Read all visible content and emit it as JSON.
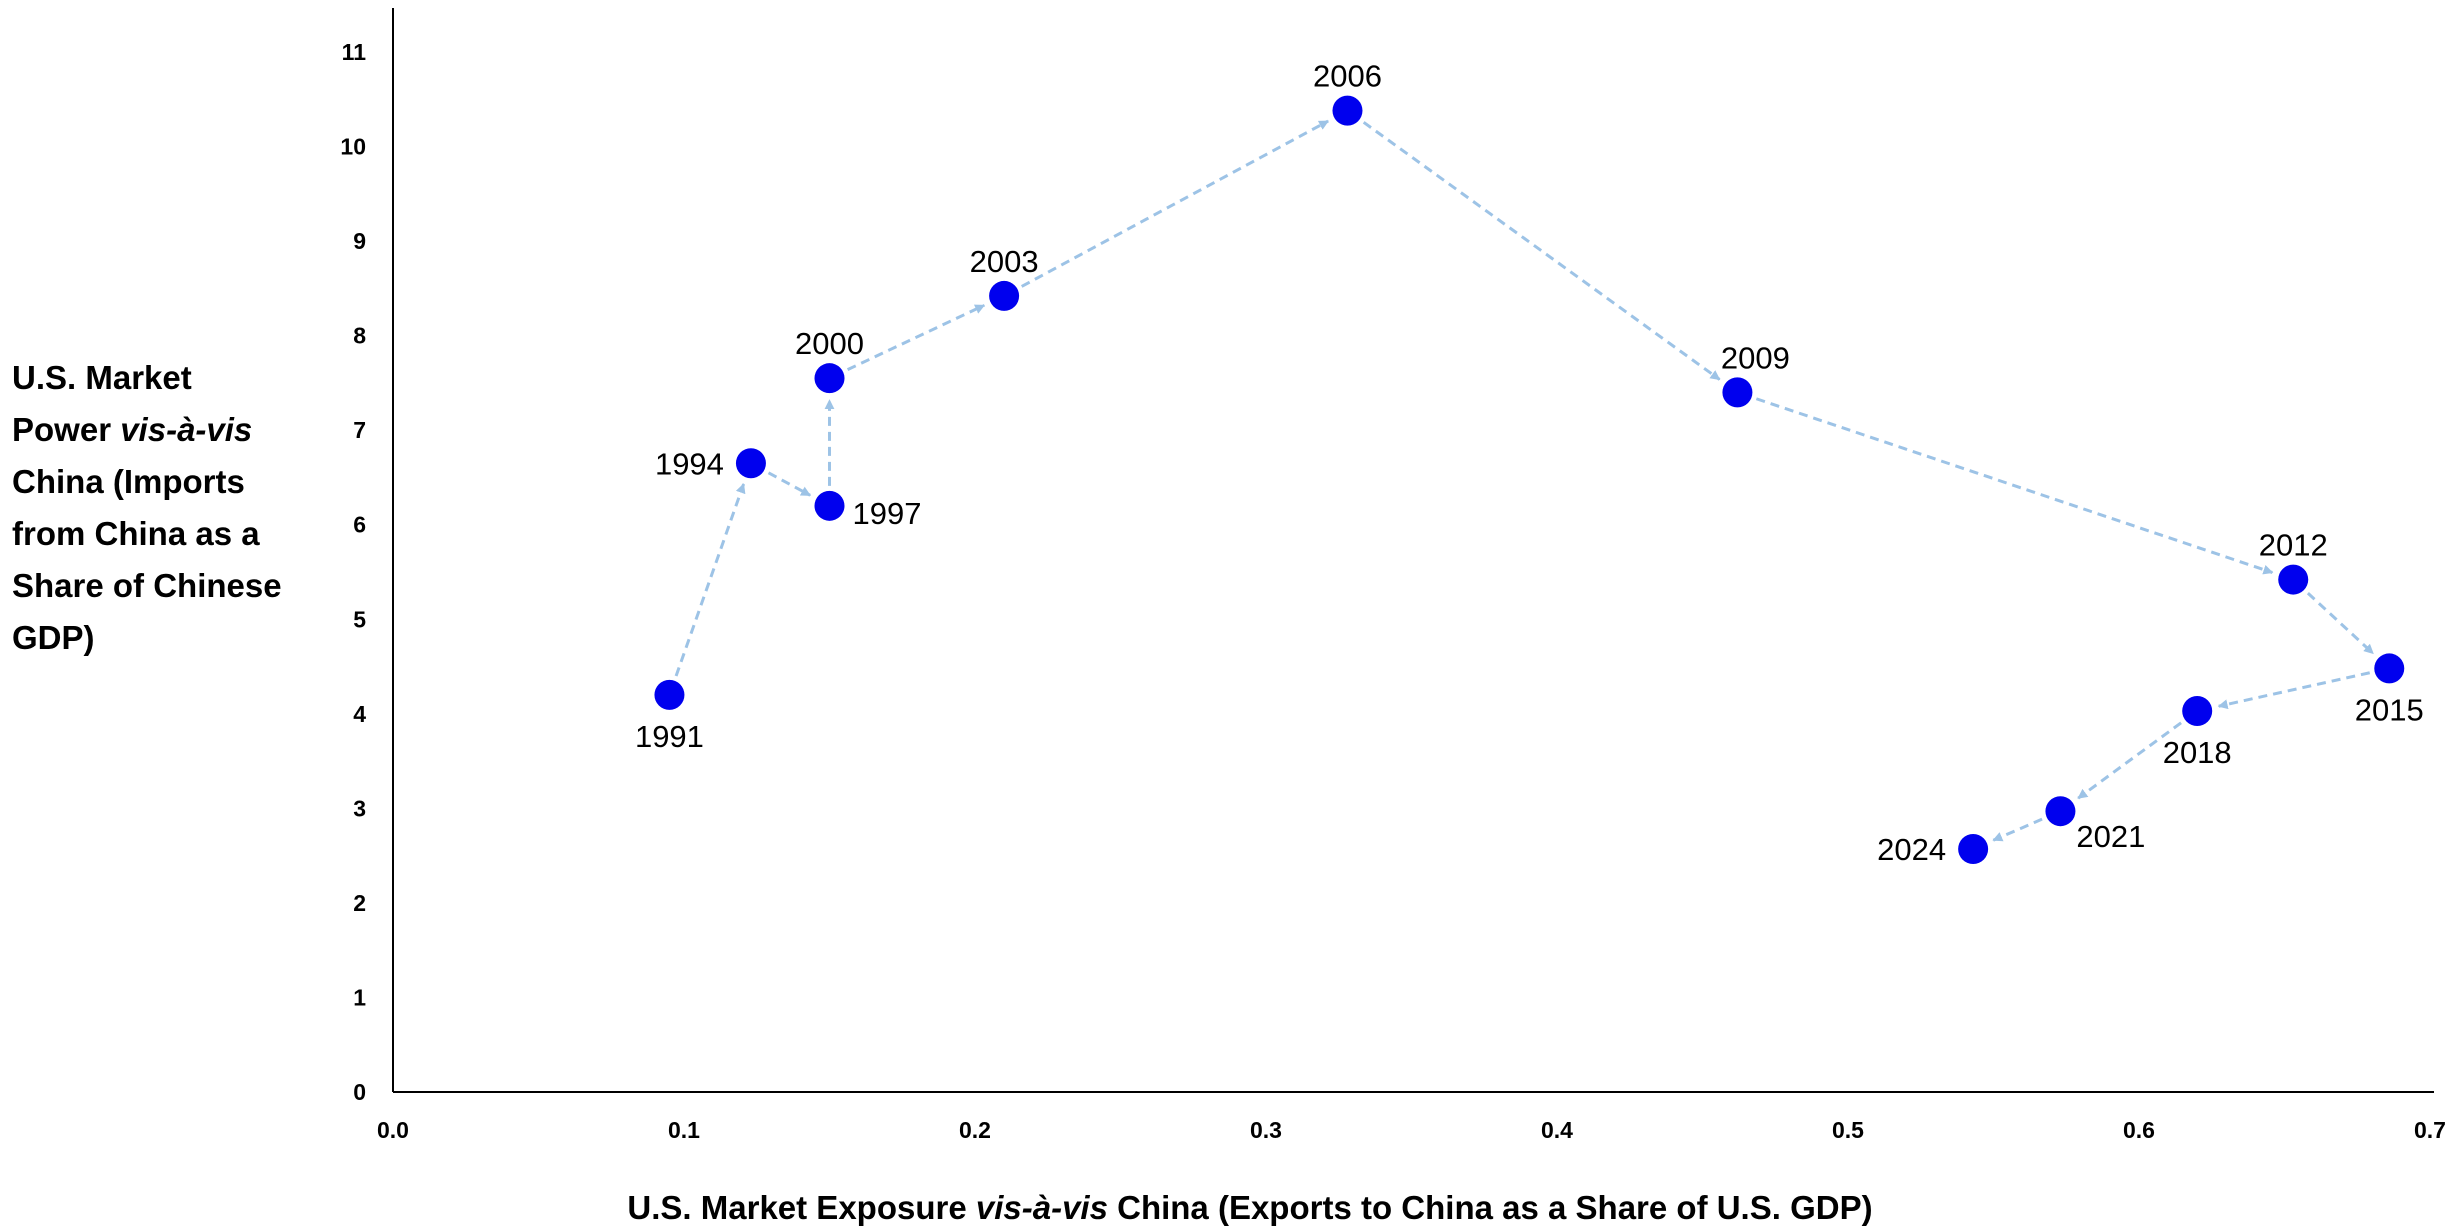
{
  "chart_data": {
    "type": "scatter",
    "title": "",
    "xlabel_parts": [
      {
        "text": "U.S. Market Exposure ",
        "italic": false
      },
      {
        "text": "vis-à-vis",
        "italic": true
      },
      {
        "text": " China (Exports to China as a Share of U.S. GDP)",
        "italic": false
      }
    ],
    "ylabel_lines": [
      [
        {
          "text": "U.S. Market",
          "italic": false
        }
      ],
      [
        {
          "text": "Power ",
          "italic": false
        },
        {
          "text": "vis-à-vis",
          "italic": true
        }
      ],
      [
        {
          "text": "China (Imports",
          "italic": false
        }
      ],
      [
        {
          "text": "from China as a",
          "italic": false
        }
      ],
      [
        {
          "text": "Share of Chinese",
          "italic": false
        }
      ],
      [
        {
          "text": "GDP)",
          "italic": false
        }
      ]
    ],
    "xlim": [
      0,
      0.7
    ],
    "ylim": [
      0,
      11
    ],
    "x_ticks": [
      "0.0",
      "0.1",
      "0.2",
      "0.3",
      "0.4",
      "0.5",
      "0.6",
      "0.7"
    ],
    "y_ticks": [
      "0",
      "1",
      "2",
      "3",
      "4",
      "5",
      "6",
      "7",
      "8",
      "9",
      "10",
      "11"
    ],
    "grid": false,
    "marker_color": "#0000ee",
    "arrow_color": "#9dc3e6",
    "connected_path": true,
    "points": [
      {
        "label": "1991",
        "x": 0.095,
        "y": 4.2,
        "label_pos": "below"
      },
      {
        "label": "1994",
        "x": 0.123,
        "y": 6.65,
        "label_pos": "left"
      },
      {
        "label": "1997",
        "x": 0.15,
        "y": 6.2,
        "label_pos": "right"
      },
      {
        "label": "2000",
        "x": 0.15,
        "y": 7.55,
        "label_pos": "above"
      },
      {
        "label": "2003",
        "x": 0.21,
        "y": 8.42,
        "label_pos": "above"
      },
      {
        "label": "2006",
        "x": 0.328,
        "y": 10.38,
        "label_pos": "above"
      },
      {
        "label": "2009",
        "x": 0.462,
        "y": 7.4,
        "label_pos": "above-right"
      },
      {
        "label": "2012",
        "x": 0.653,
        "y": 5.42,
        "label_pos": "above"
      },
      {
        "label": "2015",
        "x": 0.686,
        "y": 4.48,
        "label_pos": "below"
      },
      {
        "label": "2018",
        "x": 0.62,
        "y": 4.03,
        "label_pos": "below"
      },
      {
        "label": "2021",
        "x": 0.573,
        "y": 2.97,
        "label_pos": "below-right"
      },
      {
        "label": "2024",
        "x": 0.543,
        "y": 2.57,
        "label_pos": "left"
      }
    ]
  }
}
